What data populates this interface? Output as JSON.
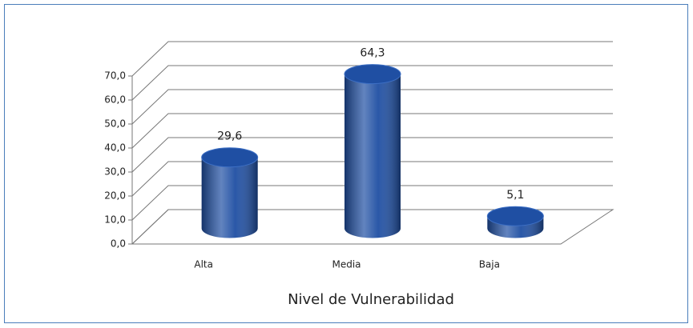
{
  "chart_data": {
    "type": "bar3d",
    "x_label": "Nivel de Vulnerabilidad",
    "categories": [
      "Alta",
      "Media",
      "Baja"
    ],
    "values": [
      29.6,
      64.3,
      5.1
    ],
    "value_labels": [
      "29,6",
      "64,3",
      "5,1"
    ],
    "color": "#1f4fa3",
    "ylim": [
      0,
      70
    ],
    "yticks": [
      {
        "value": 0,
        "label": "0,0"
      },
      {
        "value": 10,
        "label": "10,0"
      },
      {
        "value": 20,
        "label": "20,0"
      },
      {
        "value": 30,
        "label": "30,0"
      },
      {
        "value": 40,
        "label": "40,0"
      },
      {
        "value": 50,
        "label": "50,0"
      },
      {
        "value": 60,
        "label": "60,0"
      },
      {
        "value": 70,
        "label": "70,0"
      }
    ],
    "grid": true
  }
}
